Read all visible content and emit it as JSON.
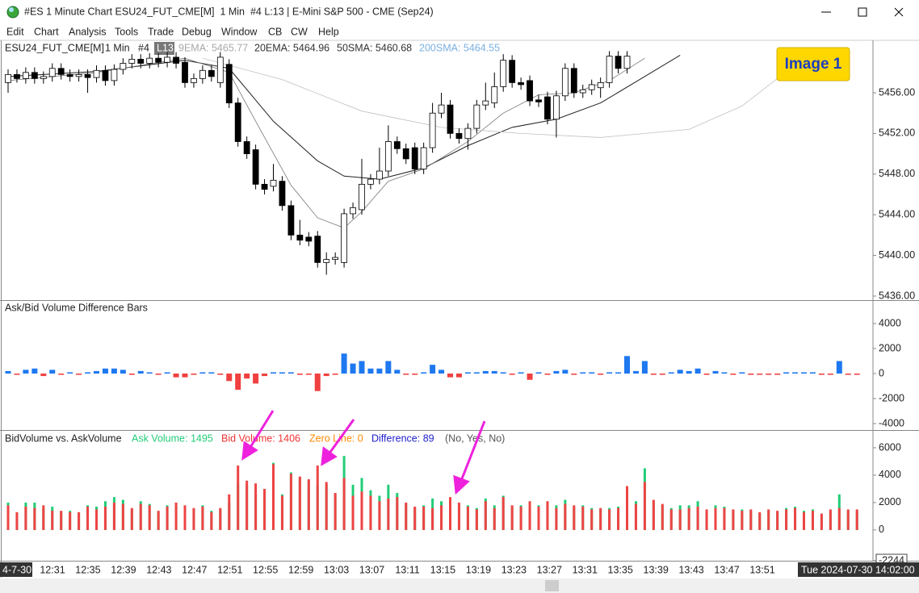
{
  "window": {
    "title": "#ES 1 Minute Chart ESU24_FUT_CME[M]  1 Min  #4 L:13 | E-Mini S&P 500 - CME (Sep24)"
  },
  "menu": [
    "Edit",
    "Chart",
    "Analysis",
    "Tools",
    "Trade",
    "Debug",
    "Window",
    "CB",
    "CW",
    "Help"
  ],
  "badge": "Image 1",
  "price_pane": {
    "symbol": "ESU24_FUT_CME[M]",
    "interval": "1 Min",
    "chart_number": "#4",
    "level": "L13",
    "indicators": [
      {
        "label": "9EMA: 5465.77",
        "color": "#a8a8a8"
      },
      {
        "label": "20EMA: 5464.96",
        "color": "#333333"
      },
      {
        "label": "50SMA: 5460.68",
        "color": "#333333"
      },
      {
        "label": "200SMA: 5464.55",
        "color": "#7ab0e0"
      }
    ],
    "ylim": [
      5435.6,
      5461.16
    ],
    "yticks": [
      {
        "value": 5456,
        "label": "5456.00"
      },
      {
        "value": 5452,
        "label": "5452.00"
      },
      {
        "value": 5448,
        "label": "5448.00"
      },
      {
        "value": 5444,
        "label": "5444.00"
      },
      {
        "value": 5440,
        "label": "5440.00"
      },
      {
        "value": 5436,
        "label": "5436.00"
      }
    ],
    "open": [
      5457.0,
      5457.8,
      5457.4,
      5458.0,
      5457.4,
      5457.6,
      5458.4,
      5457.8,
      5457.6,
      5457.8,
      5457.5,
      5458.2,
      5457.2,
      5458.3,
      5458.9,
      5459.3,
      5458.9,
      5459.4,
      5459.0,
      5459.5,
      5459.0,
      5457.0,
      5457.4,
      5458.2,
      5457.0,
      5458.8,
      5455.0,
      5451.2,
      5450.4,
      5447.0,
      5446.8,
      5447.3,
      5444.9,
      5442.0,
      5441.8,
      5441.9,
      5439.3,
      5439.6,
      5439.3,
      5444.1,
      5444.5,
      5447.0,
      5447.5,
      5448.3,
      5451.2,
      5450.5,
      5450.6,
      5448.5,
      5450.6,
      5454.0,
      5454.8,
      5452.0,
      5451.5,
      5452.5,
      5454.8,
      5455.0,
      5456.6,
      5459.2,
      5457.0,
      5457.2,
      5455.3,
      5455.6,
      5453.4,
      5455.7,
      5458.4,
      5456.0,
      5456.3,
      5456.5,
      5457.0,
      5459.6,
      5458.4
    ],
    "high": [
      5458.3,
      5458.3,
      5458.5,
      5458.5,
      5458.1,
      5458.9,
      5458.9,
      5458.3,
      5458.3,
      5458.3,
      5458.7,
      5458.7,
      5458.8,
      5459.4,
      5459.8,
      5459.8,
      5459.9,
      5459.9,
      5460.0,
      5460.0,
      5459.5,
      5457.9,
      5458.7,
      5458.7,
      5460.0,
      5459.3,
      5455.5,
      5451.7,
      5450.9,
      5447.5,
      5449.0,
      5447.8,
      5445.4,
      5443.5,
      5442.3,
      5442.4,
      5440.3,
      5440.3,
      5444.6,
      5445.2,
      5449.5,
      5448.0,
      5450.6,
      5452.8,
      5451.7,
      5451.0,
      5451.1,
      5451.1,
      5455.0,
      5456.0,
      5455.3,
      5452.5,
      5453.0,
      5455.3,
      5457.0,
      5458.0,
      5459.8,
      5459.7,
      5457.5,
      5457.7,
      5455.8,
      5456.1,
      5456.2,
      5458.9,
      5458.9,
      5456.8,
      5457.3,
      5457.5,
      5460.1,
      5460.1,
      5460.1
    ],
    "low": [
      5456.0,
      5457.0,
      5456.9,
      5456.9,
      5456.9,
      5457.1,
      5457.3,
      5457.1,
      5457.1,
      5456.0,
      5457.0,
      5456.7,
      5456.7,
      5457.8,
      5458.4,
      5458.4,
      5458.4,
      5458.5,
      5458.5,
      5458.4,
      5456.5,
      5456.5,
      5456.9,
      5457.1,
      5456.5,
      5454.5,
      5450.7,
      5449.5,
      5446.5,
      5446.0,
      5446.3,
      5444.4,
      5441.5,
      5441.0,
      5440.9,
      5438.8,
      5438.1,
      5439.1,
      5438.8,
      5443.6,
      5444.0,
      5446.5,
      5447.0,
      5447.8,
      5450.0,
      5449.0,
      5448.0,
      5448.0,
      5450.1,
      5453.5,
      5451.5,
      5451.0,
      5450.4,
      5452.0,
      5454.3,
      5454.5,
      5456.1,
      5456.5,
      5456.3,
      5454.7,
      5454.6,
      5452.9,
      5451.6,
      5455.2,
      5455.5,
      5455.5,
      5455.8,
      5455.5,
      5456.5,
      5457.9,
      5457.9
    ],
    "close": [
      5457.8,
      5457.4,
      5458.0,
      5457.4,
      5457.6,
      5458.4,
      5457.8,
      5457.6,
      5457.8,
      5457.5,
      5458.2,
      5457.2,
      5458.3,
      5458.9,
      5459.3,
      5458.9,
      5459.4,
      5459.0,
      5459.5,
      5458.9,
      5457.0,
      5457.4,
      5458.2,
      5457.6,
      5459.5,
      5455.0,
      5451.2,
      5450.0,
      5447.0,
      5446.5,
      5447.4,
      5444.9,
      5442.0,
      5441.5,
      5441.4,
      5439.3,
      5439.6,
      5439.8,
      5444.1,
      5444.7,
      5447.0,
      5447.5,
      5448.3,
      5451.2,
      5450.5,
      5449.5,
      5448.5,
      5450.6,
      5454.0,
      5454.8,
      5452.0,
      5451.5,
      5452.5,
      5454.8,
      5455.2,
      5456.6,
      5459.2,
      5457.0,
      5456.8,
      5455.2,
      5455.1,
      5453.4,
      5455.7,
      5458.4,
      5456.0,
      5456.3,
      5456.8,
      5457.0,
      5459.6,
      5458.4,
      5459.6
    ],
    "lines": [
      {
        "color": "#222222",
        "width": 1,
        "x": [
          0,
          10,
          20,
          25,
          30,
          35,
          38,
          42,
          47,
          52,
          57,
          62,
          67,
          72,
          76
        ],
        "values": [
          5457.6,
          5458.1,
          5459.2,
          5458.4,
          5453.2,
          5449.3,
          5447.8,
          5447.5,
          5448.6,
          5450.8,
          5452.6,
          5453.4,
          5455.0,
          5457.6,
          5459.7
        ]
      },
      {
        "color": "#777777",
        "width": 0.8,
        "x": [
          0,
          10,
          20,
          25,
          28,
          32,
          35,
          38,
          40,
          43,
          47,
          52,
          56,
          60,
          64,
          68,
          72
        ],
        "values": [
          5457.2,
          5458.0,
          5459.4,
          5458.0,
          5453.2,
          5446.9,
          5443.7,
          5442.7,
          5444.3,
          5447.3,
          5448.5,
          5451.2,
          5454.0,
          5455.8,
          5456.0,
          5457.2,
          5459.4
        ]
      },
      {
        "color": "#c0c0c0",
        "width": 0.8,
        "x": [
          22,
          31,
          40,
          49,
          58,
          67,
          77,
          83,
          87
        ],
        "values": [
          5459.4,
          5457.3,
          5454.2,
          5452.6,
          5452.0,
          5451.6,
          5452.4,
          5454.7,
          5457.4
        ]
      }
    ]
  },
  "diff_pane": {
    "title": "Ask/Bid Volume Difference Bars",
    "ylim": [
      -4516,
      5806
    ],
    "yticks": [
      4000,
      2000,
      0,
      -2000,
      -4000
    ],
    "values": [
      200,
      -100,
      300,
      400,
      -200,
      300,
      -100,
      100,
      -100,
      100,
      200,
      400,
      400,
      300,
      -100,
      200,
      100,
      -100,
      100,
      -300,
      -300,
      -100,
      100,
      100,
      -100,
      -600,
      -1300,
      -400,
      -800,
      -200,
      100,
      100,
      100,
      -100,
      -100,
      -1400,
      -200,
      -100,
      1600,
      800,
      1000,
      400,
      400,
      1000,
      300,
      -100,
      -100,
      100,
      700,
      300,
      -300,
      -300,
      100,
      100,
      200,
      200,
      100,
      -100,
      100,
      -500,
      100,
      -100,
      200,
      300,
      -100,
      100,
      100,
      -100,
      100,
      100,
      1400,
      200,
      1000,
      -100,
      -100,
      100,
      300,
      200,
      400,
      -100,
      200,
      100,
      -100,
      100,
      -100,
      -100,
      -100,
      -100,
      100,
      100,
      100,
      100,
      -100,
      -100,
      1000,
      -100,
      -100
    ]
  },
  "volume_pane": {
    "title": "BidVolume vs. AskVolume",
    "ask_label": "Ask Volume: 1495",
    "bid_label": "Bid Volume: 1406",
    "zero_label": "Zero Line: 0",
    "difference_label": "Difference: 89",
    "flags": "(No, Yes, No)",
    "ylim": [
      -2244,
      7235
    ],
    "yticks": [
      6000,
      4000,
      2000,
      0,
      -2244
    ],
    "ask": [
      2000,
      1200,
      2000,
      2000,
      1600,
      1700,
      1300,
      1400,
      1200,
      1800,
      1700,
      2100,
      2400,
      2200,
      1500,
      2100,
      1900,
      1300,
      1800,
      1700,
      1500,
      1500,
      1800,
      1400,
      1500,
      2000,
      3400,
      3200,
      2600,
      2800,
      4900,
      2600,
      4200,
      3800,
      3600,
      3300,
      3300,
      2600,
      5400,
      3300,
      3800,
      2900,
      2500,
      3300,
      2700,
      1900,
      1600,
      1800,
      2300,
      2100,
      2100,
      1700,
      1800,
      1600,
      2300,
      1800,
      2500,
      1700,
      1800,
      1600,
      1800,
      2000,
      1800,
      2200,
      1700,
      1800,
      1600,
      1500,
      1600,
      1700,
      3200,
      2100,
      4500,
      2100,
      1800,
      1600,
      1800,
      1800,
      2100,
      1400,
      1800,
      1700,
      1400,
      1500,
      1400,
      1200,
      1400,
      1300,
      1600,
      1700,
      1400,
      1500,
      1100,
      1400,
      2600,
      1400,
      1400
    ],
    "bid": [
      1800,
      1300,
      1700,
      1600,
      1800,
      1400,
      1400,
      1300,
      1300,
      1700,
      1500,
      1700,
      2000,
      1900,
      1600,
      1900,
      1800,
      1400,
      1700,
      2000,
      1800,
      1600,
      1700,
      1300,
      1600,
      2600,
      4700,
      3600,
      3400,
      3000,
      4800,
      2500,
      4100,
      3900,
      3700,
      4700,
      3500,
      2700,
      3800,
      2500,
      2800,
      2500,
      2100,
      2300,
      2400,
      2000,
      1700,
      1700,
      1600,
      1800,
      2400,
      2000,
      1700,
      1500,
      2100,
      1600,
      2400,
      1800,
      1700,
      2100,
      1700,
      2100,
      1600,
      1900,
      1800,
      1700,
      1500,
      1600,
      1500,
      1600,
      3200,
      1900,
      3500,
      2200,
      1900,
      1500,
      1500,
      1600,
      1700,
      1500,
      1600,
      1600,
      1500,
      1400,
      1500,
      1300,
      1500,
      1400,
      1500,
      1600,
      1300,
      1400,
      1200,
      1500,
      1600,
      1500,
      1500
    ]
  },
  "time_axis": {
    "start_label": "4-7-30",
    "labels": [
      "12:31",
      "12:35",
      "12:39",
      "12:43",
      "12:47",
      "12:51",
      "12:55",
      "12:59",
      "13:03",
      "13:07",
      "13:11",
      "13:15",
      "13:19",
      "13:23",
      "13:27",
      "13:31",
      "13:35",
      "13:39",
      "13:43",
      "13:47",
      "13:51"
    ],
    "end_label": "Tue 2024-07-30 14:02:00"
  }
}
